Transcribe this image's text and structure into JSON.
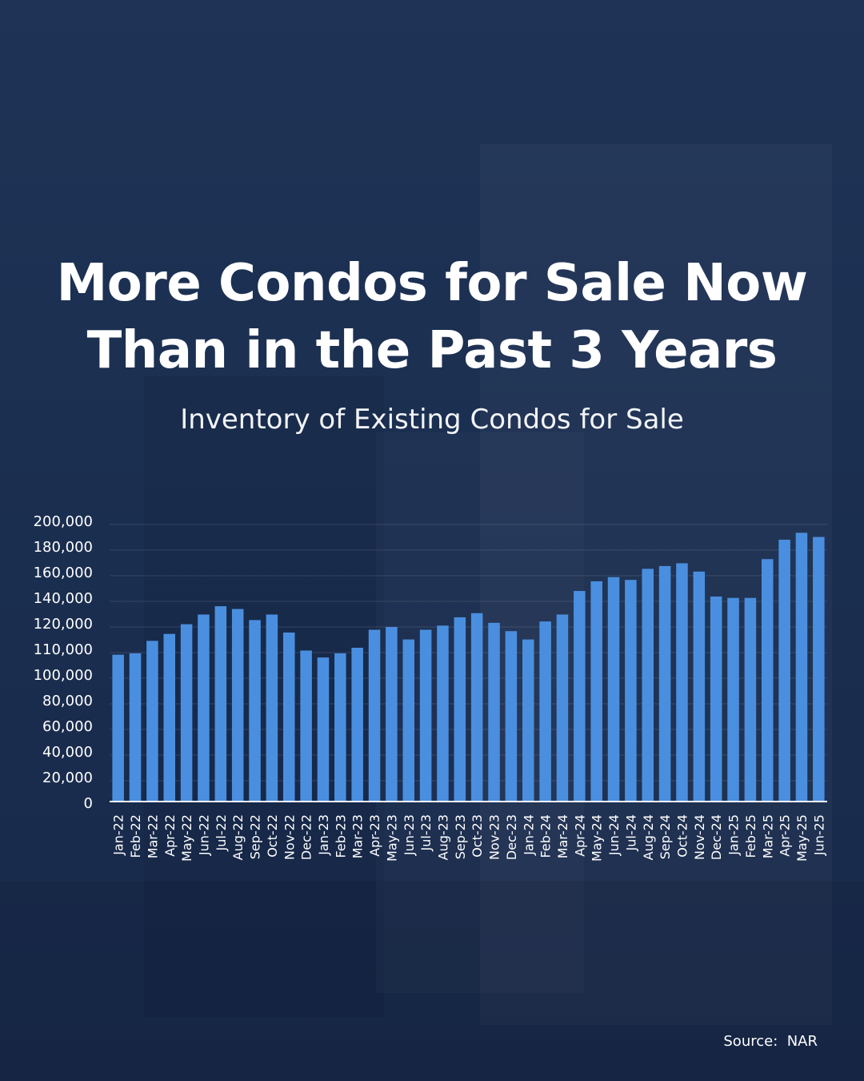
{
  "title_line1": "More Condos for Sale Now",
  "title_line2": "Than in the Past 3 Years",
  "subtitle": "Inventory of Existing Condos for Sale",
  "source": "Source:  NAR",
  "colors": {
    "bar": "#4a8fdf",
    "background": "#1d3254",
    "axis": "#ffffff"
  },
  "chart_data": {
    "type": "bar",
    "title": "Inventory of Existing Condos for Sale",
    "xlabel": "",
    "ylabel": "",
    "ylim": [
      0,
      200000
    ],
    "y_tick_labels": [
      "200,000",
      "180,000",
      "160,000",
      "140,000",
      "120,000",
      "110,000",
      "100,000",
      "80,000",
      "60,000",
      "40,000",
      "20,000",
      "0"
    ],
    "grid": true,
    "categories": [
      "Jan-22",
      "Feb-22",
      "Mar-22",
      "Apr-22",
      "May-22",
      "Jun-22",
      "Jul-22",
      "Aug-22",
      "Sep-22",
      "Oct-22",
      "Nov-22",
      "Dec-22",
      "Jan-23",
      "Feb-23",
      "Mar-23",
      "Apr-23",
      "May-23",
      "Jun-23",
      "Jul-23",
      "Aug-23",
      "Sep-23",
      "Oct-23",
      "Nov-23",
      "Dec-23",
      "Jan-24",
      "Feb-24",
      "Mar-24",
      "Apr-24",
      "May-24",
      "Jun-24",
      "Jul-24",
      "Aug-24",
      "Sep-24",
      "Oct-24",
      "Nov-24",
      "Dec-24",
      "Jan-25",
      "Feb-25",
      "Mar-25",
      "Apr-25",
      "May-25",
      "Jun-25"
    ],
    "values": [
      106000,
      107000,
      116000,
      121000,
      128000,
      135000,
      141000,
      139000,
      131000,
      135000,
      122000,
      109000,
      104000,
      107000,
      111000,
      124000,
      126000,
      117000,
      124000,
      127000,
      133000,
      136000,
      129000,
      123000,
      117000,
      130000,
      135000,
      152000,
      159000,
      162000,
      160000,
      168000,
      170000,
      172000,
      166000,
      148000,
      147000,
      147000,
      175000,
      189000,
      194000,
      191000
    ]
  }
}
